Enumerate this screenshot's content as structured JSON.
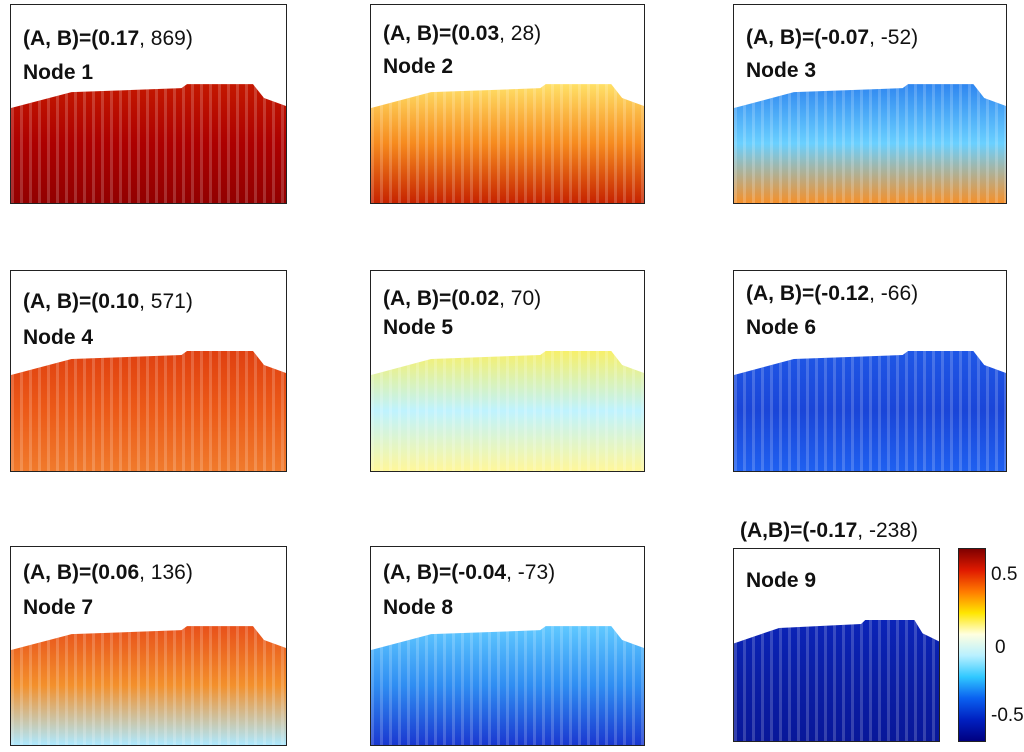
{
  "panels": [
    {
      "ab_prefix": "(A, B)=(",
      "a": "0.17",
      "b": "869)",
      "node": "Node 1",
      "colors": [
        "#c41800",
        "#ad0000",
        "#920000"
      ]
    },
    {
      "ab_prefix": "(A, B)=(",
      "a": "0.03",
      "b": "28)",
      "node": "Node 2",
      "colors": [
        "#ffe066",
        "#f68a1e",
        "#c62300"
      ]
    },
    {
      "ab_prefix": "(A, B)=(",
      "a": "-0.07",
      "b": "-52)",
      "node": "Node 3",
      "colors": [
        "#2f86f0",
        "#6ad0ff",
        "#f5902a"
      ]
    },
    {
      "ab_prefix": "(A, B)=(",
      "a": "0.10",
      "b": "571)",
      "node": "Node 4",
      "colors": [
        "#e04010",
        "#ec5a18",
        "#f07a2c"
      ]
    },
    {
      "ab_prefix": "(A, B)=(",
      "a": "0.02",
      "b": "70)",
      "node": "Node 5",
      "colors": [
        "#f7f06a",
        "#bff3ff",
        "#fff79a"
      ]
    },
    {
      "ab_prefix": "(A, B)=(",
      "a": "-0.12",
      "b": "-66)",
      "node": "Node 6",
      "colors": [
        "#1f57e6",
        "#1a45d8",
        "#1f60f0"
      ]
    },
    {
      "ab_prefix": "(A, B)=(",
      "a": "0.06",
      "b": "136)",
      "node": "Node 7",
      "colors": [
        "#e8501a",
        "#f3902c",
        "#aee9ff"
      ]
    },
    {
      "ab_prefix": "(A, B)=(",
      "a": "-0.04",
      "b": "-73)",
      "node": "Node 8",
      "colors": [
        "#5fc8ff",
        "#2f8df2",
        "#1a38d0"
      ]
    },
    {
      "ab_prefix": "(A,B)=(",
      "a": "-0.17",
      "b": "-238)",
      "node": "Node 9",
      "colors": [
        "#0b24b8",
        "#0a1ea6",
        "#08179a"
      ]
    }
  ],
  "colorbar": {
    "ticks": [
      "0.5",
      "0",
      "-0.5"
    ],
    "stops": [
      "#7f0000",
      "#e01a00",
      "#ff7a00",
      "#ffe600",
      "#ffffe0",
      "#b8f0ff",
      "#30c8ff",
      "#0a60f0",
      "#0020c0",
      "#000080"
    ]
  }
}
